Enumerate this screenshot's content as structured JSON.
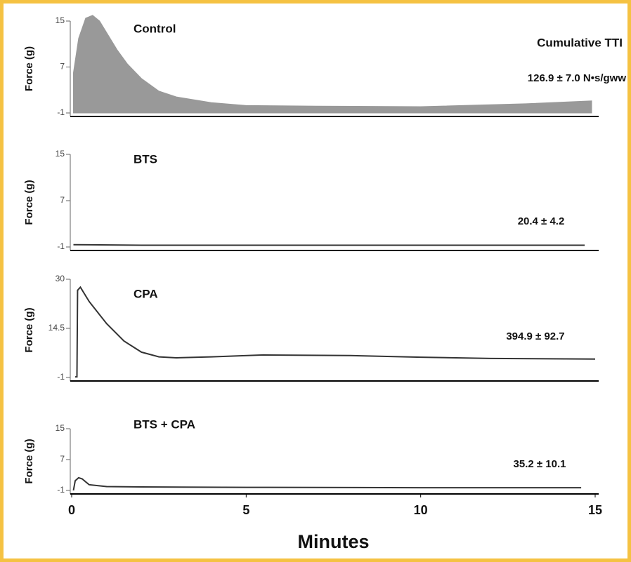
{
  "chart_data": [
    {
      "type": "area",
      "title": "Control",
      "ylabel": "Force (g)",
      "annotation_heading": "Cumulative TTI",
      "annotation": "126.9 ± 7.0 N•s/gww",
      "color": "#999999",
      "xlim": [
        0,
        15
      ],
      "ylim": [
        -1,
        15
      ],
      "yticks": [
        -1,
        7,
        15
      ],
      "x": [
        0.05,
        0.2,
        0.4,
        0.6,
        0.8,
        1.0,
        1.3,
        1.6,
        2.0,
        2.5,
        3.0,
        4.0,
        5.0,
        7.0,
        10.0,
        13.0,
        14.9
      ],
      "values": [
        6,
        12,
        15.5,
        16,
        15,
        13,
        10,
        7.5,
        5,
        2.8,
        1.8,
        0.8,
        0.3,
        0.2,
        0.1,
        0.6,
        1.1
      ]
    },
    {
      "type": "line",
      "title": "BTS",
      "ylabel": "Force (g)",
      "annotation": "20.4 ± 4.2",
      "color": "#333333",
      "xlim": [
        0,
        15
      ],
      "ylim": [
        -1,
        15
      ],
      "yticks": [
        -1,
        7,
        15
      ],
      "x": [
        0.05,
        2,
        5,
        8,
        11,
        14.7
      ],
      "values": [
        -0.6,
        -0.7,
        -0.7,
        -0.7,
        -0.7,
        -0.7
      ]
    },
    {
      "type": "line",
      "title": "CPA",
      "ylabel": "Force (g)",
      "annotation": "394.9 ± 92.7",
      "color": "#333333",
      "xlim": [
        0,
        15
      ],
      "ylim": [
        -1,
        30
      ],
      "yticks": [
        -1,
        14.5,
        30
      ],
      "x": [
        0.1,
        0.15,
        0.17,
        0.25,
        0.5,
        1.0,
        1.5,
        2.0,
        2.5,
        3.0,
        4.0,
        5.5,
        8.0,
        10.0,
        12.0,
        15.0
      ],
      "values": [
        -0.8,
        -0.8,
        26.5,
        27.5,
        23,
        16,
        10.5,
        7,
        5.5,
        5.2,
        5.5,
        6.1,
        5.9,
        5.4,
        5.0,
        4.8
      ]
    },
    {
      "type": "line",
      "title": "BTS + CPA",
      "ylabel": "Force (g)",
      "annotation": "35.2 ± 10.1",
      "xlabel": "Minutes",
      "color": "#333333",
      "xlim": [
        0,
        15
      ],
      "ylim": [
        -1,
        15
      ],
      "yticks": [
        -1,
        7,
        15
      ],
      "xticks": [
        0,
        5,
        10,
        15
      ],
      "x": [
        0.05,
        0.1,
        0.2,
        0.3,
        0.5,
        1.0,
        2.0,
        5.0,
        10.0,
        14.6
      ],
      "values": [
        -1,
        1.5,
        2.3,
        2,
        0.5,
        0,
        -0.1,
        -0.2,
        -0.3,
        -0.3
      ]
    }
  ]
}
